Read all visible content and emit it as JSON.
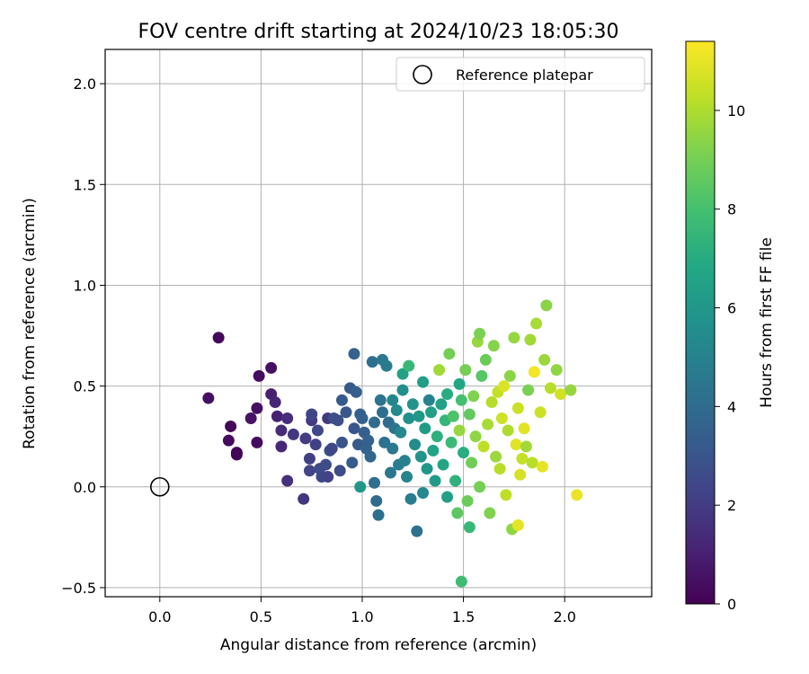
{
  "chart_data": {
    "type": "scatter",
    "title": "FOV centre drift starting at 2024/10/23 18:05:30",
    "xlabel": "Angular distance from reference (arcmin)",
    "ylabel": "Rotation from reference (arcmin)",
    "xlim": [
      -0.27,
      2.43
    ],
    "ylim": [
      -0.545,
      2.17
    ],
    "xticks": [
      0.0,
      0.5,
      1.0,
      1.5,
      2.0
    ],
    "xtick_labels": [
      "0.0",
      "0.5",
      "1.0",
      "1.5",
      "2.0"
    ],
    "yticks": [
      -0.5,
      0.0,
      0.5,
      1.0,
      1.5,
      2.0
    ],
    "ytick_labels": [
      "−0.5",
      "0.0",
      "0.5",
      "1.0",
      "1.5",
      "2.0"
    ],
    "grid": true,
    "legend": {
      "location": "top-right",
      "entries": [
        {
          "label": "Reference platepar",
          "marker": "open-circle"
        }
      ]
    },
    "reference_point": {
      "x": 0.0,
      "y": 0.0
    },
    "colorbar": {
      "label": "Hours from first FF file",
      "colormap": "viridis",
      "range": [
        0,
        11.4
      ],
      "ticks": [
        0,
        2,
        4,
        6,
        8,
        10
      ],
      "tick_labels": [
        "0",
        "2",
        "4",
        "6",
        "8",
        "10"
      ]
    },
    "points": [
      [
        0.29,
        0.74,
        0.2
      ],
      [
        0.24,
        0.44,
        0.5
      ],
      [
        0.35,
        0.3,
        0.2
      ],
      [
        0.34,
        0.23,
        0.3
      ],
      [
        0.38,
        0.17,
        0.1
      ],
      [
        0.38,
        0.16,
        0.1
      ],
      [
        0.45,
        0.34,
        0.6
      ],
      [
        0.49,
        0.55,
        0.4
      ],
      [
        0.48,
        0.39,
        0.5
      ],
      [
        0.48,
        0.22,
        0.4
      ],
      [
        0.55,
        0.59,
        0.5
      ],
      [
        0.55,
        0.46,
        1.0
      ],
      [
        0.57,
        0.42,
        1.2
      ],
      [
        0.58,
        0.35,
        1.0
      ],
      [
        0.6,
        0.28,
        1.4
      ],
      [
        0.6,
        0.2,
        1.3
      ],
      [
        0.63,
        0.34,
        1.5
      ],
      [
        0.63,
        0.03,
        1.6
      ],
      [
        0.66,
        0.26,
        1.8
      ],
      [
        0.71,
        -0.06,
        1.8
      ],
      [
        0.72,
        0.24,
        2.0
      ],
      [
        0.74,
        0.14,
        2.1
      ],
      [
        0.74,
        0.08,
        2.3
      ],
      [
        0.75,
        0.33,
        2.0
      ],
      [
        0.75,
        0.36,
        2.4
      ],
      [
        0.77,
        0.21,
        2.2
      ],
      [
        0.78,
        0.28,
        2.5
      ],
      [
        0.79,
        0.09,
        2.6
      ],
      [
        0.8,
        0.05,
        2.4
      ],
      [
        0.82,
        0.11,
        2.6
      ],
      [
        0.83,
        0.34,
        1.9
      ],
      [
        0.83,
        0.05,
        2.3
      ],
      [
        0.84,
        0.18,
        2.7
      ],
      [
        0.85,
        0.19,
        2.4
      ],
      [
        0.86,
        0.34,
        2.8
      ],
      [
        0.88,
        0.33,
        2.7
      ],
      [
        0.89,
        0.08,
        2.6
      ],
      [
        0.9,
        0.22,
        3.0
      ],
      [
        0.9,
        0.43,
        3.2
      ],
      [
        0.92,
        0.37,
        3.1
      ],
      [
        0.94,
        0.49,
        3.2
      ],
      [
        0.95,
        0.12,
        3.3
      ],
      [
        0.96,
        0.66,
        3.5
      ],
      [
        0.96,
        0.29,
        3.0
      ],
      [
        0.97,
        0.47,
        3.4
      ],
      [
        0.98,
        0.21,
        3.3
      ],
      [
        0.99,
        0.0,
        6.0
      ],
      [
        0.99,
        0.36,
        3.4
      ],
      [
        1.0,
        0.34,
        3.5
      ],
      [
        1.01,
        0.27,
        3.4
      ],
      [
        1.02,
        0.19,
        3.6
      ],
      [
        1.03,
        0.23,
        3.5
      ],
      [
        1.04,
        0.15,
        3.8
      ],
      [
        1.05,
        0.62,
        4.2
      ],
      [
        1.06,
        0.32,
        4.0
      ],
      [
        1.06,
        0.02,
        4.1
      ],
      [
        1.07,
        -0.07,
        4.0
      ],
      [
        1.08,
        -0.14,
        4.2
      ],
      [
        1.09,
        0.43,
        4.4
      ],
      [
        1.1,
        0.63,
        4.5
      ],
      [
        1.1,
        0.37,
        4.1
      ],
      [
        1.11,
        0.22,
        4.3
      ],
      [
        1.12,
        0.6,
        4.7
      ],
      [
        1.13,
        0.32,
        4.0
      ],
      [
        1.14,
        0.07,
        4.5
      ],
      [
        1.15,
        0.43,
        5.2
      ],
      [
        1.15,
        0.19,
        4.6
      ],
      [
        1.16,
        0.29,
        4.4
      ],
      [
        1.17,
        0.38,
        5.4
      ],
      [
        1.18,
        0.11,
        4.8
      ],
      [
        1.19,
        0.27,
        5.3
      ],
      [
        1.2,
        0.48,
        5.6
      ],
      [
        1.2,
        0.56,
        6.5
      ],
      [
        1.21,
        0.13,
        5.0
      ],
      [
        1.22,
        0.05,
        5.1
      ],
      [
        1.23,
        0.6,
        7.6
      ],
      [
        1.23,
        0.34,
        5.7
      ],
      [
        1.24,
        -0.06,
        4.8
      ],
      [
        1.25,
        0.41,
        5.8
      ],
      [
        1.26,
        0.21,
        5.5
      ],
      [
        1.27,
        -0.22,
        4.3
      ],
      [
        1.28,
        0.35,
        6.1
      ],
      [
        1.29,
        0.15,
        5.9
      ],
      [
        1.3,
        0.52,
        6.3
      ],
      [
        1.3,
        -0.03,
        5.3
      ],
      [
        1.31,
        0.29,
        6.2
      ],
      [
        1.32,
        0.09,
        6.0
      ],
      [
        1.33,
        0.43,
        5.0
      ],
      [
        1.34,
        0.37,
        6.4
      ],
      [
        1.35,
        0.18,
        6.6
      ],
      [
        1.36,
        0.03,
        6.2
      ],
      [
        1.37,
        0.25,
        7.2
      ],
      [
        1.38,
        0.58,
        9.8
      ],
      [
        1.39,
        0.41,
        6.5
      ],
      [
        1.4,
        0.11,
        6.7
      ],
      [
        1.41,
        0.33,
        7.5
      ],
      [
        1.42,
        -0.05,
        6.4
      ],
      [
        1.42,
        0.46,
        7.0
      ],
      [
        1.43,
        0.66,
        9.0
      ],
      [
        1.44,
        0.22,
        7.7
      ],
      [
        1.45,
        0.35,
        8.2
      ],
      [
        1.46,
        0.03,
        7.3
      ],
      [
        1.47,
        -0.13,
        8.5
      ],
      [
        1.48,
        0.51,
        6.8
      ],
      [
        1.48,
        0.28,
        9.6
      ],
      [
        1.49,
        0.43,
        8.0
      ],
      [
        1.49,
        -0.47,
        7.8
      ],
      [
        1.5,
        0.17,
        7.1
      ],
      [
        1.51,
        0.58,
        9.0
      ],
      [
        1.52,
        -0.07,
        8.8
      ],
      [
        1.53,
        0.36,
        8.6
      ],
      [
        1.53,
        -0.2,
        7.6
      ],
      [
        1.54,
        0.12,
        8.9
      ],
      [
        1.55,
        0.45,
        9.2
      ],
      [
        1.56,
        0.25,
        9.5
      ],
      [
        1.57,
        0.72,
        9.6
      ],
      [
        1.58,
        0.76,
        9.1
      ],
      [
        1.58,
        0.0,
        9.0
      ],
      [
        1.59,
        0.55,
        8.4
      ],
      [
        1.6,
        0.2,
        10.3
      ],
      [
        1.61,
        0.63,
        8.8
      ],
      [
        1.62,
        0.31,
        9.9
      ],
      [
        1.63,
        -0.13,
        9.2
      ],
      [
        1.64,
        0.42,
        10.1
      ],
      [
        1.65,
        0.7,
        9.3
      ],
      [
        1.66,
        0.15,
        9.7
      ],
      [
        1.67,
        0.47,
        10.4
      ],
      [
        1.68,
        0.09,
        10.2
      ],
      [
        1.69,
        0.34,
        10.6
      ],
      [
        1.7,
        0.5,
        10.8
      ],
      [
        1.71,
        -0.04,
        10.3
      ],
      [
        1.72,
        0.28,
        10.0
      ],
      [
        1.73,
        0.55,
        9.4
      ],
      [
        1.74,
        -0.21,
        9.5
      ],
      [
        1.75,
        0.74,
        9.6
      ],
      [
        1.76,
        0.21,
        10.9
      ],
      [
        1.77,
        0.39,
        10.5
      ],
      [
        1.77,
        -0.19,
        11.0
      ],
      [
        1.78,
        0.06,
        10.7
      ],
      [
        1.79,
        0.14,
        10.4
      ],
      [
        1.8,
        0.29,
        10.9
      ],
      [
        1.81,
        0.2,
        9.8
      ],
      [
        1.82,
        0.48,
        9.1
      ],
      [
        1.83,
        0.73,
        9.8
      ],
      [
        1.84,
        0.12,
        10.2
      ],
      [
        1.85,
        0.57,
        11.2
      ],
      [
        1.86,
        0.81,
        9.9
      ],
      [
        1.88,
        0.37,
        10.5
      ],
      [
        1.89,
        0.1,
        11.0
      ],
      [
        1.9,
        0.63,
        9.7
      ],
      [
        1.91,
        0.9,
        9.4
      ],
      [
        1.93,
        0.49,
        10.2
      ],
      [
        1.96,
        0.58,
        9.5
      ],
      [
        1.98,
        0.46,
        10.6
      ],
      [
        2.03,
        0.48,
        9.6
      ],
      [
        2.06,
        -0.04,
        11.1
      ]
    ]
  }
}
